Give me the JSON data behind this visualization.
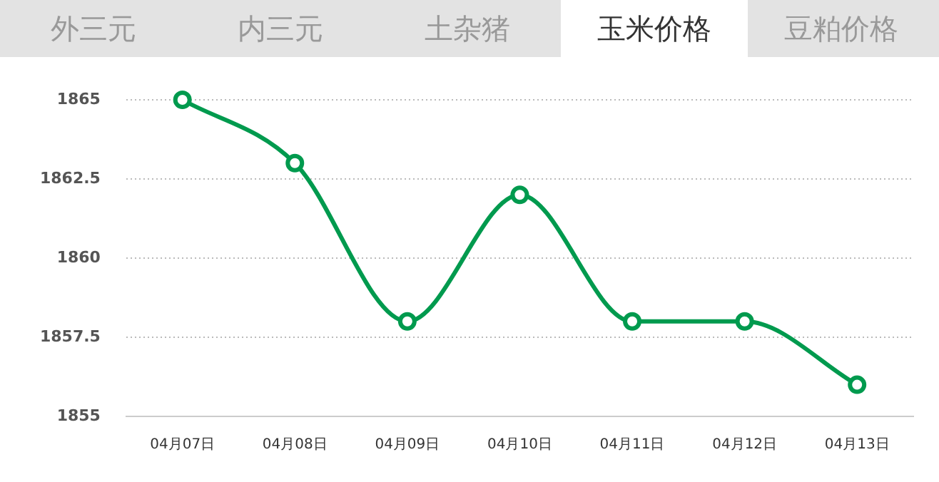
{
  "chart_data": {
    "type": "line",
    "title": "玉米价格",
    "annotations": [
      "外三元",
      "内三元",
      "土杂猪",
      "豆粕价格"
    ],
    "categories": [
      "04月07日",
      "04月08日",
      "04月09日",
      "04月10日",
      "04月11日",
      "04月12日",
      "04月13日"
    ],
    "series": [
      {
        "color": "#009a4e",
        "values": [
          1865,
          1863,
          1858,
          1862,
          1858,
          1858,
          1856
        ]
      }
    ],
    "ylim": [
      1855,
      1865
    ],
    "yticks": [
      1855,
      {
        "value": 1857.5,
        "label": "1857.5"
      },
      1860,
      {
        "value": 1862.5,
        "label": "1862.5"
      },
      1865
    ],
    "grid": "y",
    "legend": false,
    "marker": "circle",
    "line_style": "solid"
  }
}
